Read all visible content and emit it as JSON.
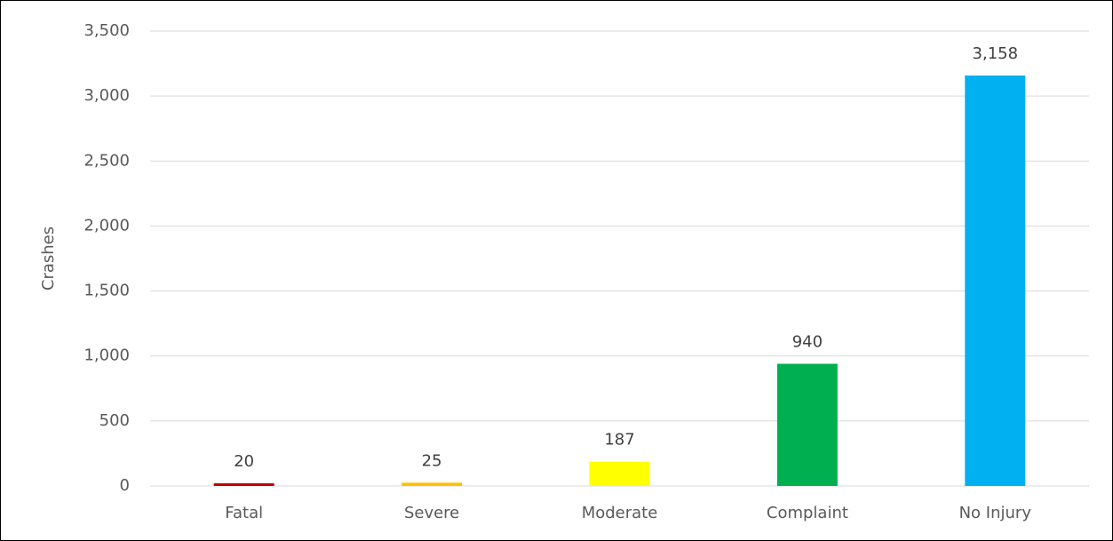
{
  "chart_data": {
    "type": "bar",
    "y_axis_label": "Crashes",
    "categories": [
      "Fatal",
      "Severe",
      "Moderate",
      "Complaint",
      "No Injury"
    ],
    "values": [
      20,
      25,
      187,
      940,
      3158
    ],
    "value_labels": [
      "20",
      "25",
      "187",
      "940",
      "3,158"
    ],
    "colors": [
      "#c00000",
      "#ffc000",
      "#ffff00",
      "#00b050",
      "#00b0f0"
    ],
    "ylim": [
      0,
      3500
    ],
    "yticks": [
      0,
      500,
      {
        "value": 1000,
        "label": "1,000"
      },
      {
        "value": 1500,
        "label": "1,500"
      },
      {
        "value": 2000,
        "label": "2,000"
      },
      {
        "value": 2500,
        "label": "2,500"
      },
      {
        "value": 3000,
        "label": "3,000"
      },
      {
        "value": 3500,
        "label": "3,500"
      }
    ],
    "grid": true
  }
}
